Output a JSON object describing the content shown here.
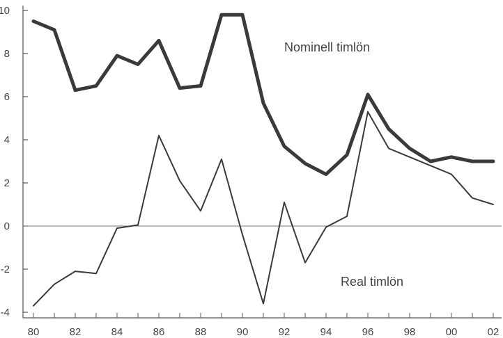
{
  "chart_data": {
    "type": "line",
    "title": "",
    "xlabel": "",
    "ylabel": "",
    "x": [
      1980,
      1981,
      1982,
      1983,
      1984,
      1985,
      1986,
      1987,
      1988,
      1989,
      1990,
      1991,
      1992,
      1993,
      1994,
      1995,
      1996,
      1997,
      1998,
      1999,
      2000,
      2001,
      2002
    ],
    "xlim": [
      1980,
      2002
    ],
    "ylim": [
      -4,
      10
    ],
    "grid": false,
    "x_ticks": [
      {
        "value": 1980,
        "label": "80"
      },
      {
        "value": 1982,
        "label": "82"
      },
      {
        "value": 1984,
        "label": "84"
      },
      {
        "value": 1986,
        "label": "86"
      },
      {
        "value": 1988,
        "label": "88"
      },
      {
        "value": 1990,
        "label": "90"
      },
      {
        "value": 1992,
        "label": "92"
      },
      {
        "value": 1994,
        "label": "94"
      },
      {
        "value": 1996,
        "label": "96"
      },
      {
        "value": 1998,
        "label": "98"
      },
      {
        "value": 2000,
        "label": "00"
      },
      {
        "value": 2002,
        "label": "02"
      }
    ],
    "y_ticks": [
      {
        "value": 10,
        "label": "10"
      },
      {
        "value": 8,
        "label": "8"
      },
      {
        "value": 6,
        "label": "6"
      },
      {
        "value": 4,
        "label": "4"
      },
      {
        "value": 2,
        "label": "2"
      },
      {
        "value": 0,
        "label": "0"
      },
      {
        "value": -2,
        "label": "-2"
      },
      {
        "value": -4,
        "label": "-4"
      }
    ],
    "zero_line": true,
    "series": [
      {
        "name": "Nominell timlön",
        "color": "#3a3a3a",
        "values": [
          9.5,
          9.1,
          6.3,
          6.5,
          7.9,
          7.5,
          8.6,
          6.4,
          6.5,
          9.8,
          9.8,
          5.7,
          3.7,
          2.9,
          2.4,
          3.3,
          6.1,
          4.5,
          3.6,
          3.0,
          3.2,
          3.0,
          3.0
        ]
      },
      {
        "name": "Real timlön",
        "color": "#3a3a3a",
        "values": [
          -3.7,
          -2.7,
          -2.1,
          -2.2,
          -0.1,
          0.05,
          4.2,
          2.1,
          0.7,
          3.1,
          -0.4,
          -3.6,
          1.1,
          -1.7,
          -0.05,
          0.45,
          5.3,
          3.6,
          3.2,
          2.8,
          2.4,
          1.3,
          1.0
        ]
      }
    ]
  }
}
